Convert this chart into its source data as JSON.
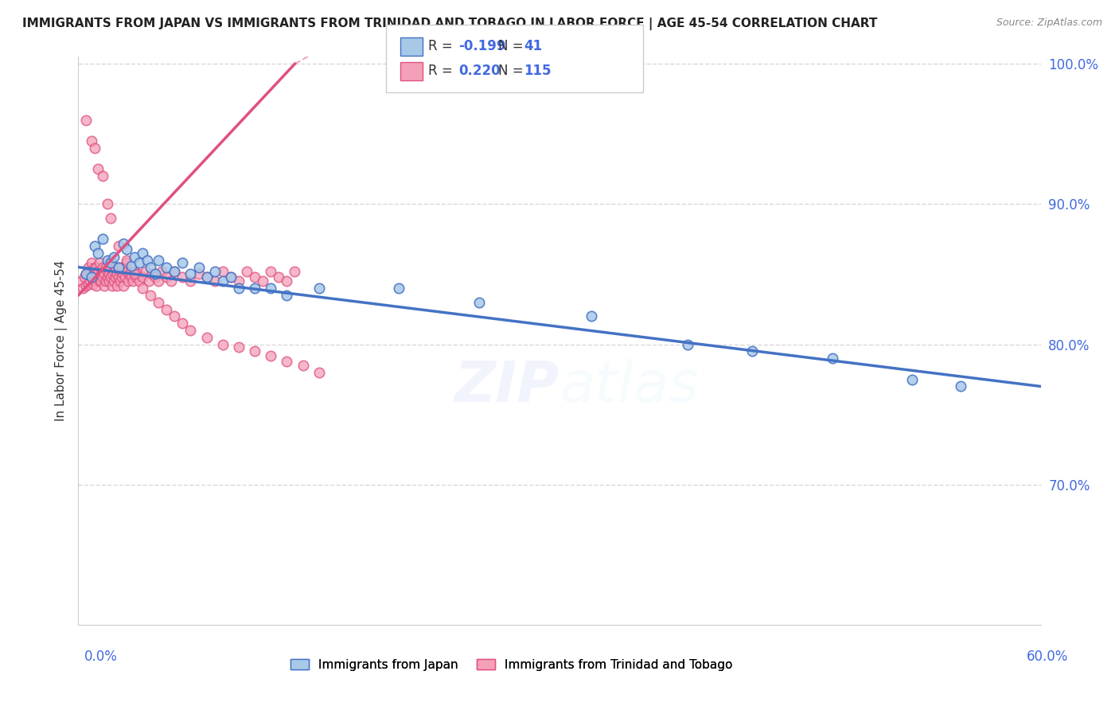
{
  "title": "IMMIGRANTS FROM JAPAN VS IMMIGRANTS FROM TRINIDAD AND TOBAGO IN LABOR FORCE | AGE 45-54 CORRELATION CHART",
  "source": "Source: ZipAtlas.com",
  "xlabel_bottom_left": "0.0%",
  "xlabel_bottom_right": "60.0%",
  "ylabel": "In Labor Force | Age 45-54",
  "legend_japan_R": "-0.199",
  "legend_japan_N": "41",
  "legend_tt_R": "0.220",
  "legend_tt_N": "115",
  "legend_label_japan": "Immigrants from Japan",
  "legend_label_tt": "Immigrants from Trinidad and Tobago",
  "watermark": "ZIPatlas",
  "color_japan": "#a8c8e8",
  "color_tt": "#f4a0b8",
  "color_japan_line": "#4472c4",
  "color_tt_line": "#e05080",
  "xmin": 0.0,
  "xmax": 0.6,
  "ymin": 0.6,
  "ymax": 1.005,
  "yticks": [
    0.7,
    0.8,
    0.9,
    1.0
  ],
  "ytick_labels": [
    "70.0%",
    "80.0%",
    "90.0%",
    "100.0%"
  ],
  "grid_color": "#d8d8d8",
  "background_color": "#ffffff",
  "japan_x": [
    0.005,
    0.008,
    0.01,
    0.012,
    0.015,
    0.018,
    0.02,
    0.022,
    0.025,
    0.028,
    0.03,
    0.033,
    0.035,
    0.038,
    0.04,
    0.043,
    0.045,
    0.048,
    0.05,
    0.055,
    0.06,
    0.065,
    0.07,
    0.075,
    0.08,
    0.085,
    0.09,
    0.095,
    0.1,
    0.11,
    0.12,
    0.13,
    0.15,
    0.2,
    0.25,
    0.32,
    0.38,
    0.42,
    0.47,
    0.52,
    0.55
  ],
  "japan_y": [
    0.85,
    0.848,
    0.87,
    0.865,
    0.875,
    0.86,
    0.858,
    0.862,
    0.855,
    0.872,
    0.868,
    0.856,
    0.862,
    0.858,
    0.865,
    0.86,
    0.855,
    0.85,
    0.86,
    0.855,
    0.852,
    0.858,
    0.85,
    0.855,
    0.848,
    0.852,
    0.845,
    0.848,
    0.84,
    0.84,
    0.84,
    0.835,
    0.84,
    0.84,
    0.83,
    0.82,
    0.8,
    0.795,
    0.79,
    0.775,
    0.77
  ],
  "tt_x": [
    0.002,
    0.003,
    0.004,
    0.005,
    0.005,
    0.006,
    0.006,
    0.007,
    0.007,
    0.008,
    0.008,
    0.009,
    0.009,
    0.01,
    0.01,
    0.01,
    0.011,
    0.011,
    0.012,
    0.012,
    0.013,
    0.013,
    0.014,
    0.014,
    0.015,
    0.015,
    0.015,
    0.016,
    0.016,
    0.017,
    0.017,
    0.018,
    0.018,
    0.019,
    0.019,
    0.02,
    0.02,
    0.02,
    0.021,
    0.021,
    0.022,
    0.022,
    0.023,
    0.023,
    0.024,
    0.024,
    0.025,
    0.025,
    0.026,
    0.026,
    0.027,
    0.027,
    0.028,
    0.028,
    0.029,
    0.03,
    0.03,
    0.031,
    0.032,
    0.033,
    0.034,
    0.035,
    0.036,
    0.037,
    0.038,
    0.04,
    0.042,
    0.044,
    0.046,
    0.048,
    0.05,
    0.052,
    0.055,
    0.058,
    0.06,
    0.065,
    0.07,
    0.075,
    0.08,
    0.085,
    0.09,
    0.095,
    0.1,
    0.105,
    0.11,
    0.115,
    0.12,
    0.125,
    0.13,
    0.135,
    0.005,
    0.008,
    0.01,
    0.012,
    0.015,
    0.018,
    0.02,
    0.025,
    0.03,
    0.035,
    0.04,
    0.045,
    0.05,
    0.055,
    0.06,
    0.065,
    0.07,
    0.08,
    0.09,
    0.1,
    0.11,
    0.12,
    0.13,
    0.14,
    0.15
  ],
  "tt_y": [
    0.845,
    0.84,
    0.848,
    0.842,
    0.85,
    0.843,
    0.855,
    0.845,
    0.852,
    0.848,
    0.858,
    0.843,
    0.85,
    0.855,
    0.845,
    0.848,
    0.842,
    0.855,
    0.848,
    0.852,
    0.845,
    0.858,
    0.85,
    0.845,
    0.852,
    0.848,
    0.855,
    0.842,
    0.85,
    0.845,
    0.855,
    0.848,
    0.852,
    0.845,
    0.85,
    0.848,
    0.855,
    0.86,
    0.842,
    0.85,
    0.845,
    0.852,
    0.848,
    0.855,
    0.842,
    0.85,
    0.848,
    0.855,
    0.845,
    0.852,
    0.848,
    0.855,
    0.842,
    0.85,
    0.848,
    0.852,
    0.858,
    0.845,
    0.85,
    0.848,
    0.845,
    0.852,
    0.848,
    0.85,
    0.845,
    0.848,
    0.852,
    0.845,
    0.85,
    0.848,
    0.845,
    0.852,
    0.848,
    0.845,
    0.852,
    0.848,
    0.845,
    0.85,
    0.848,
    0.845,
    0.852,
    0.848,
    0.845,
    0.852,
    0.848,
    0.845,
    0.852,
    0.848,
    0.845,
    0.852,
    0.96,
    0.945,
    0.94,
    0.925,
    0.92,
    0.9,
    0.89,
    0.87,
    0.86,
    0.85,
    0.84,
    0.835,
    0.83,
    0.825,
    0.82,
    0.815,
    0.81,
    0.805,
    0.8,
    0.798,
    0.795,
    0.792,
    0.788,
    0.785,
    0.78
  ]
}
